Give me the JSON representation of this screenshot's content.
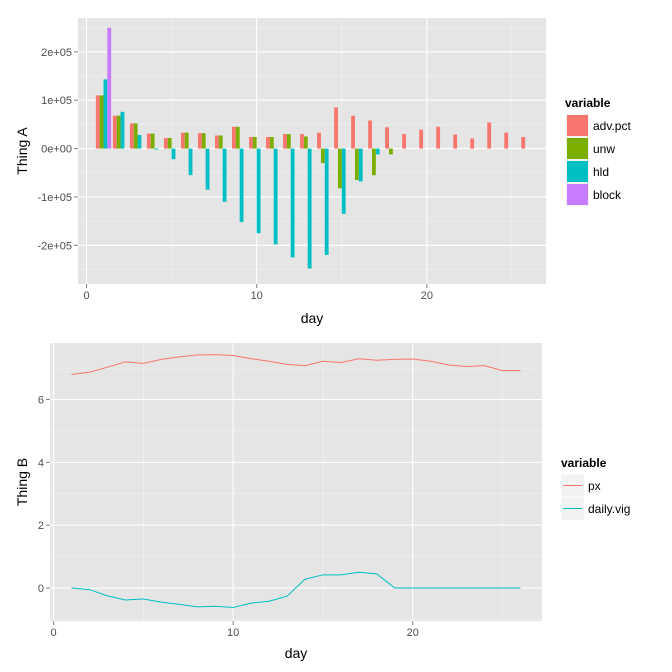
{
  "colors": {
    "panel": "#e5e5e5",
    "grid_major": "#ffffff",
    "grid_minor": "#f2f2f2",
    "adv_pct": "#f8766d",
    "unw": "#7cae00",
    "hld": "#00bfc4",
    "block": "#c77cff"
  },
  "chart_data": [
    {
      "type": "bar",
      "position": "dodge",
      "xlabel": "day",
      "ylabel": "Thing A",
      "xlim": [
        -0.5,
        27
      ],
      "ylim": [
        -280000,
        270000
      ],
      "xticks": [
        0,
        10,
        20
      ],
      "xtick_labels": [
        "0",
        "10",
        "20"
      ],
      "yticks": [
        -200000,
        -100000,
        0,
        100000,
        200000
      ],
      "ytick_labels": [
        "-2e+05",
        "-1e+05",
        "0e+00",
        "1e+05",
        "2e+05"
      ],
      "legend_title": "variable",
      "legend_position": "right",
      "x": [
        1,
        2,
        3,
        4,
        5,
        6,
        7,
        8,
        9,
        10,
        11,
        12,
        13,
        14,
        15,
        16,
        17,
        18,
        19,
        20,
        21,
        22,
        23,
        24,
        25,
        26
      ],
      "series": [
        {
          "name": "adv.pct",
          "color_key": "adv_pct",
          "values": [
            110000,
            68000,
            52000,
            31000,
            22000,
            33000,
            32000,
            27000,
            45000,
            24000,
            24000,
            30000,
            30000,
            33000,
            85000,
            68000,
            58000,
            44000,
            30000,
            39000,
            45000,
            29000,
            21000,
            54000,
            33000,
            24000
          ]
        },
        {
          "name": "unw",
          "color_key": "unw",
          "values": [
            110000,
            68000,
            52000,
            31000,
            22000,
            33000,
            32000,
            27000,
            45000,
            24000,
            24000,
            30000,
            25000,
            -30000,
            -82000,
            -65000,
            -55000,
            -12000,
            0,
            0,
            0,
            0,
            0,
            0,
            0,
            0
          ]
        },
        {
          "name": "hld",
          "color_key": "hld",
          "values": [
            143000,
            76000,
            28000,
            -2000,
            -22000,
            -55000,
            -85000,
            -110000,
            -152000,
            -175000,
            -198000,
            -225000,
            -248000,
            -220000,
            -135000,
            -68000,
            -12000,
            0,
            0,
            0,
            0,
            0,
            0,
            0,
            0,
            0
          ]
        },
        {
          "name": "block",
          "color_key": "block",
          "values": [
            250000,
            0,
            0,
            0,
            0,
            0,
            0,
            0,
            0,
            0,
            0,
            0,
            0,
            0,
            0,
            0,
            0,
            0,
            0,
            0,
            0,
            0,
            0,
            0,
            0,
            0
          ]
        }
      ]
    },
    {
      "type": "line",
      "xlabel": "day",
      "ylabel": "Thing B",
      "xlim": [
        -0.2,
        27.2
      ],
      "ylim": [
        -1.05,
        7.8
      ],
      "xticks": [
        0,
        10,
        20
      ],
      "xtick_labels": [
        "0",
        "10",
        "20"
      ],
      "yticks": [
        0,
        2,
        4,
        6
      ],
      "ytick_labels": [
        "0",
        "2",
        "4",
        "6"
      ],
      "legend_title": "variable",
      "legend_position": "right",
      "x": [
        1,
        2,
        3,
        4,
        5,
        6,
        7,
        8,
        9,
        10,
        11,
        12,
        13,
        14,
        15,
        16,
        17,
        18,
        19,
        20,
        21,
        22,
        23,
        24,
        25,
        26
      ],
      "series": [
        {
          "name": "px",
          "color_key": "adv_pct",
          "values": [
            6.8,
            6.87,
            7.03,
            7.2,
            7.15,
            7.28,
            7.36,
            7.42,
            7.43,
            7.4,
            7.3,
            7.22,
            7.12,
            7.08,
            7.22,
            7.18,
            7.3,
            7.25,
            7.28,
            7.29,
            7.22,
            7.1,
            7.05,
            7.08,
            6.92,
            6.92
          ]
        },
        {
          "name": "daily.vig",
          "color_key": "hld",
          "values": [
            0,
            -0.05,
            -0.25,
            -0.38,
            -0.35,
            -0.45,
            -0.52,
            -0.6,
            -0.58,
            -0.62,
            -0.48,
            -0.42,
            -0.26,
            0.28,
            0.42,
            0.42,
            0.5,
            0.45,
            0,
            0,
            0,
            0,
            0,
            0,
            0,
            0
          ]
        }
      ]
    }
  ]
}
